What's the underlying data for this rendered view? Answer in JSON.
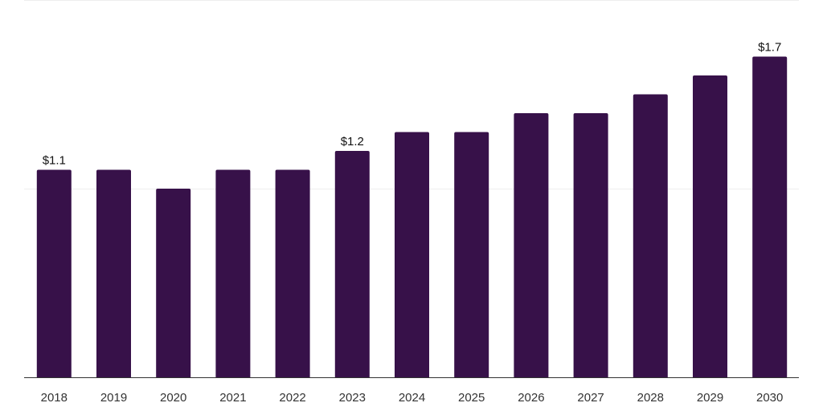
{
  "chart_data": {
    "type": "bar",
    "title": "",
    "xlabel": "",
    "ylabel": "",
    "categories": [
      "2018",
      "2019",
      "2020",
      "2021",
      "2022",
      "2023",
      "2024",
      "2025",
      "2026",
      "2027",
      "2028",
      "2029",
      "2030"
    ],
    "values": [
      1.1,
      1.1,
      1.0,
      1.1,
      1.1,
      1.2,
      1.3,
      1.3,
      1.4,
      1.4,
      1.5,
      1.6,
      1.7
    ],
    "data_labels": [
      {
        "index": 0,
        "text": "$1.1"
      },
      {
        "index": 5,
        "text": "$1.2"
      },
      {
        "index": 12,
        "text": "$1.7"
      }
    ],
    "ylim": [
      0,
      2.0
    ],
    "gridlines": [
      1.0,
      2.0
    ],
    "grid": true,
    "legend": "none",
    "bar_color": "#371149",
    "grid_color": "#eeeeee",
    "axis_color": "#333333"
  }
}
